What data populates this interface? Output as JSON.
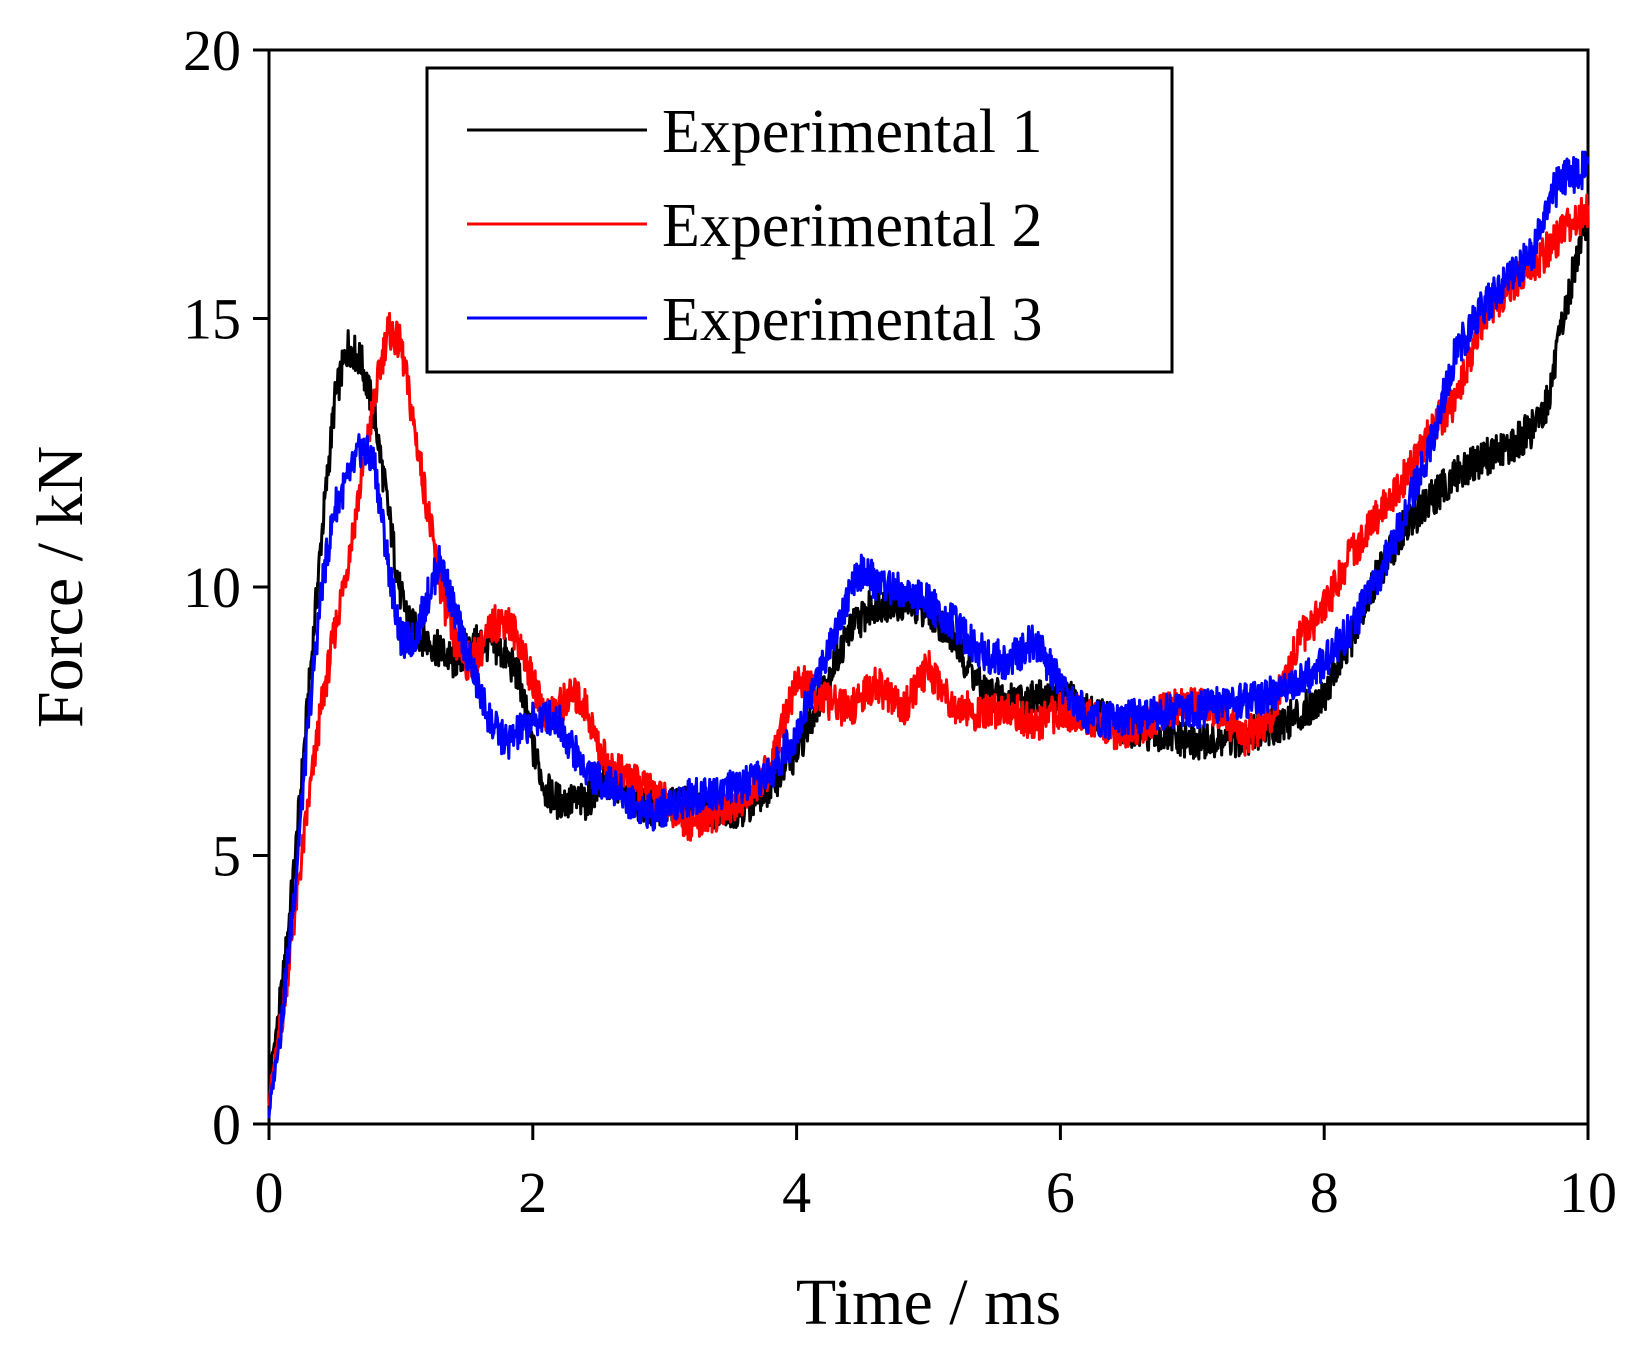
{
  "chart_data": {
    "type": "line",
    "title": "",
    "xlabel": "Time / ms",
    "ylabel": "Force / kN",
    "xlim": [
      0,
      10
    ],
    "ylim": [
      0,
      20
    ],
    "xticks": [
      0,
      2,
      4,
      6,
      8,
      10
    ],
    "yticks": [
      0,
      5,
      10,
      15,
      20
    ],
    "x_tick_labels": [
      "0",
      "2",
      "4",
      "6",
      "8",
      "10"
    ],
    "y_tick_labels": [
      "0",
      "5",
      "10",
      "15",
      "20"
    ],
    "grid": false,
    "legend_position": "top-center",
    "series": [
      {
        "name": "Experimental 1",
        "color": "#000000",
        "x": [
          0,
          0.1,
          0.2,
          0.3,
          0.4,
          0.5,
          0.6,
          0.7,
          0.8,
          0.9,
          1.0,
          1.1,
          1.2,
          1.3,
          1.4,
          1.5,
          1.6,
          1.7,
          1.8,
          1.9,
          2.0,
          2.1,
          2.2,
          2.3,
          2.4,
          2.5,
          2.6,
          2.7,
          2.8,
          2.9,
          3.0,
          3.2,
          3.4,
          3.6,
          3.8,
          4.0,
          4.2,
          4.4,
          4.6,
          4.8,
          5.0,
          5.2,
          5.4,
          5.6,
          5.8,
          6.0,
          6.2,
          6.4,
          6.6,
          6.8,
          7.0,
          7.2,
          7.4,
          7.6,
          7.8,
          8.0,
          8.2,
          8.4,
          8.6,
          8.8,
          9.0,
          9.2,
          9.4,
          9.6,
          9.7,
          9.8,
          9.9,
          10.0
        ],
        "values": [
          0.8,
          2.5,
          5.0,
          8.0,
          11.0,
          13.5,
          14.5,
          14.2,
          13.2,
          11.5,
          9.8,
          9.2,
          9.0,
          8.8,
          8.6,
          8.8,
          9.0,
          8.9,
          8.7,
          8.3,
          7.0,
          6.2,
          6.0,
          6.0,
          6.0,
          6.3,
          6.4,
          6.2,
          6.0,
          5.9,
          5.9,
          6.0,
          5.8,
          5.9,
          6.3,
          6.9,
          8.1,
          9.2,
          9.7,
          9.7,
          9.6,
          9.0,
          8.1,
          7.9,
          7.9,
          8.0,
          7.7,
          7.5,
          7.3,
          7.2,
          7.1,
          7.1,
          7.2,
          7.4,
          7.6,
          8.0,
          9.0,
          10.2,
          11.1,
          11.6,
          12.1,
          12.4,
          12.6,
          13.0,
          13.5,
          14.8,
          16.0,
          17.0
        ]
      },
      {
        "name": "Experimental 2",
        "color": "#ff0000",
        "x": [
          0,
          0.1,
          0.2,
          0.3,
          0.4,
          0.5,
          0.6,
          0.7,
          0.8,
          0.9,
          1.0,
          1.1,
          1.2,
          1.3,
          1.4,
          1.5,
          1.6,
          1.7,
          1.8,
          1.9,
          2.0,
          2.1,
          2.2,
          2.3,
          2.4,
          2.5,
          2.6,
          2.7,
          2.8,
          2.9,
          3.0,
          3.2,
          3.4,
          3.6,
          3.8,
          4.0,
          4.2,
          4.4,
          4.6,
          4.8,
          5.0,
          5.2,
          5.4,
          5.6,
          5.8,
          6.0,
          6.2,
          6.4,
          6.6,
          6.8,
          7.0,
          7.2,
          7.4,
          7.6,
          7.8,
          8.0,
          8.2,
          8.4,
          8.6,
          8.8,
          9.0,
          9.2,
          9.4,
          9.6,
          9.8,
          10.0
        ],
        "values": [
          0.5,
          2.0,
          4.0,
          6.0,
          7.8,
          9.2,
          10.5,
          12.0,
          13.5,
          14.8,
          14.5,
          13.0,
          11.5,
          10.0,
          9.0,
          8.6,
          8.8,
          9.3,
          9.4,
          9.0,
          8.2,
          7.6,
          7.8,
          8.0,
          7.8,
          7.0,
          6.6,
          6.5,
          6.3,
          6.2,
          6.0,
          5.6,
          5.8,
          6.1,
          6.6,
          8.3,
          7.9,
          7.7,
          8.2,
          7.7,
          8.5,
          7.8,
          7.6,
          7.8,
          7.4,
          7.7,
          7.6,
          7.3,
          7.4,
          7.7,
          7.8,
          7.7,
          7.2,
          7.6,
          9.0,
          9.6,
          10.6,
          11.3,
          12.0,
          12.9,
          13.5,
          15.0,
          15.6,
          16.0,
          16.6,
          17.0
        ]
      },
      {
        "name": "Experimental 3",
        "color": "#0000ff",
        "x": [
          0,
          0.1,
          0.2,
          0.3,
          0.4,
          0.5,
          0.6,
          0.7,
          0.8,
          0.9,
          1.0,
          1.1,
          1.2,
          1.3,
          1.4,
          1.5,
          1.6,
          1.7,
          1.8,
          1.9,
          2.0,
          2.1,
          2.2,
          2.3,
          2.4,
          2.5,
          2.6,
          2.7,
          2.8,
          2.9,
          3.0,
          3.2,
          3.4,
          3.6,
          3.8,
          4.0,
          4.2,
          4.4,
          4.5,
          4.6,
          4.8,
          5.0,
          5.2,
          5.4,
          5.6,
          5.8,
          6.0,
          6.2,
          6.4,
          6.6,
          6.8,
          7.0,
          7.2,
          7.4,
          7.6,
          7.8,
          8.0,
          8.2,
          8.4,
          8.6,
          8.8,
          9.0,
          9.2,
          9.4,
          9.6,
          9.7,
          9.8,
          10.0
        ],
        "values": [
          0.2,
          2.0,
          4.5,
          7.5,
          10.0,
          11.5,
          12.0,
          12.6,
          12.3,
          10.5,
          9.0,
          9.0,
          9.8,
          10.5,
          9.6,
          8.8,
          8.0,
          7.4,
          7.1,
          7.3,
          7.5,
          7.6,
          7.5,
          7.0,
          6.6,
          6.4,
          6.3,
          6.1,
          5.9,
          5.8,
          5.9,
          6.1,
          6.2,
          6.3,
          6.5,
          7.3,
          8.6,
          9.9,
          10.3,
          10.1,
          9.9,
          9.7,
          9.3,
          8.8,
          8.6,
          9.0,
          8.2,
          7.6,
          7.5,
          7.6,
          7.7,
          7.7,
          7.8,
          7.9,
          8.0,
          8.2,
          8.6,
          9.2,
          10.1,
          11.3,
          12.6,
          14.4,
          15.2,
          15.7,
          16.3,
          17.2,
          17.6,
          17.8
        ]
      }
    ]
  }
}
